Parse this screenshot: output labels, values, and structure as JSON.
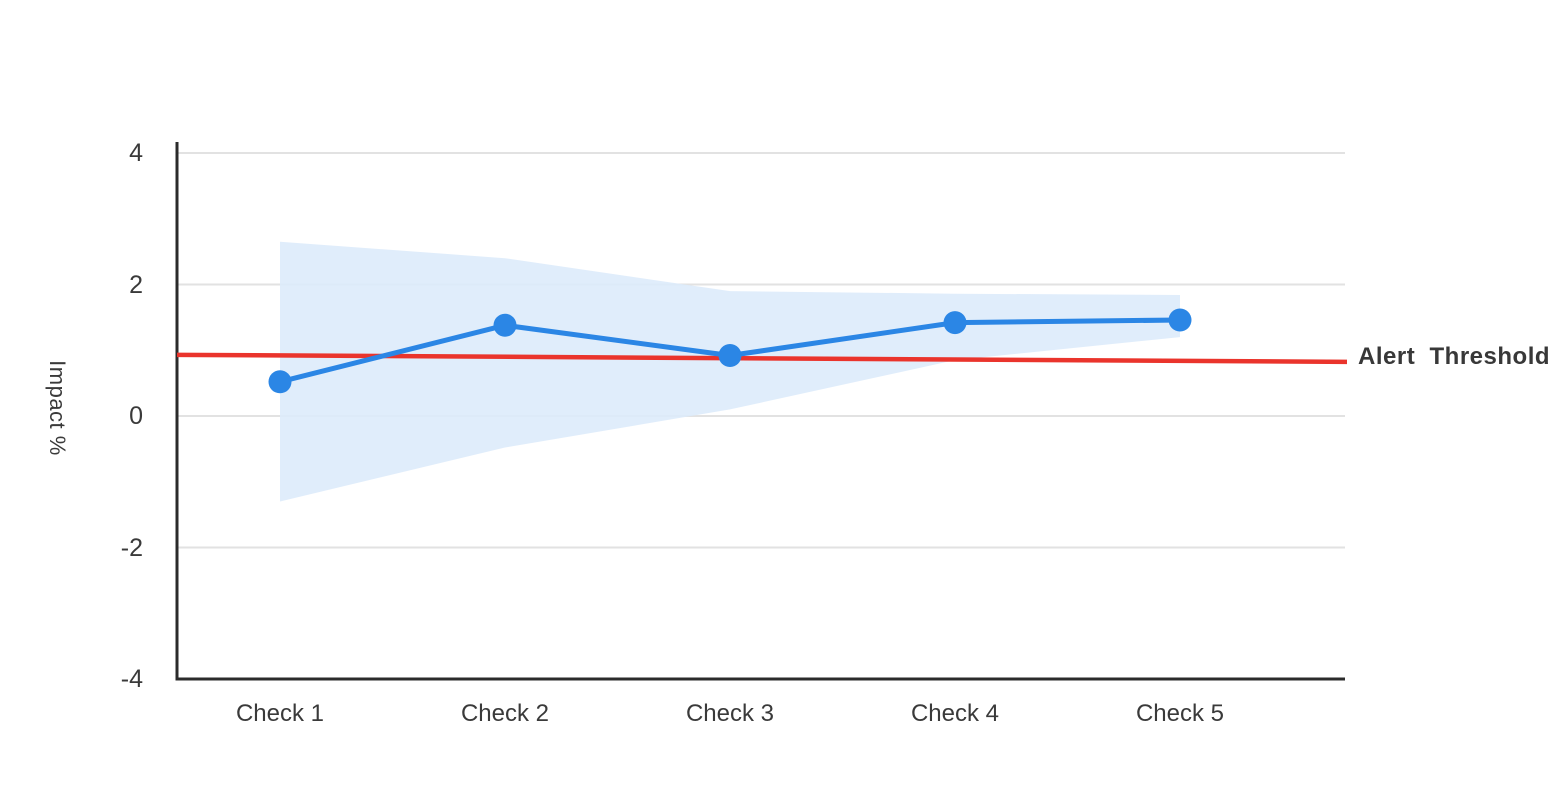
{
  "chart_data": {
    "type": "line",
    "title": "",
    "xlabel": "",
    "ylabel": "Impact %",
    "categories": [
      "Check 1",
      "Check 2",
      "Check 3",
      "Check 4",
      "Check 5"
    ],
    "series": [
      {
        "name": "Impact",
        "values": [
          0.52,
          1.38,
          0.92,
          1.42,
          1.46
        ]
      }
    ],
    "band": {
      "name": "confidence-interval",
      "upper": [
        2.65,
        2.4,
        1.9,
        1.86,
        1.84
      ],
      "lower": [
        -1.3,
        -0.48,
        0.1,
        0.85,
        1.2
      ]
    },
    "threshold": {
      "label": "Alert  Threshold",
      "value": 0.9
    },
    "ylim": [
      -4,
      4
    ],
    "yticks": [
      4,
      2,
      0,
      -2,
      -4
    ],
    "ytick_labels": [
      "4",
      "2",
      "0",
      "-2",
      "-4"
    ],
    "grid": true,
    "legend_position": "none",
    "colors": {
      "line": "#2b86e5",
      "point": "#2b86e5",
      "band": "#dceafa",
      "threshold": "#ea342c",
      "grid": "#e2e2e2",
      "axis": "#2b2b2b",
      "text": "#3a3a3a"
    }
  }
}
